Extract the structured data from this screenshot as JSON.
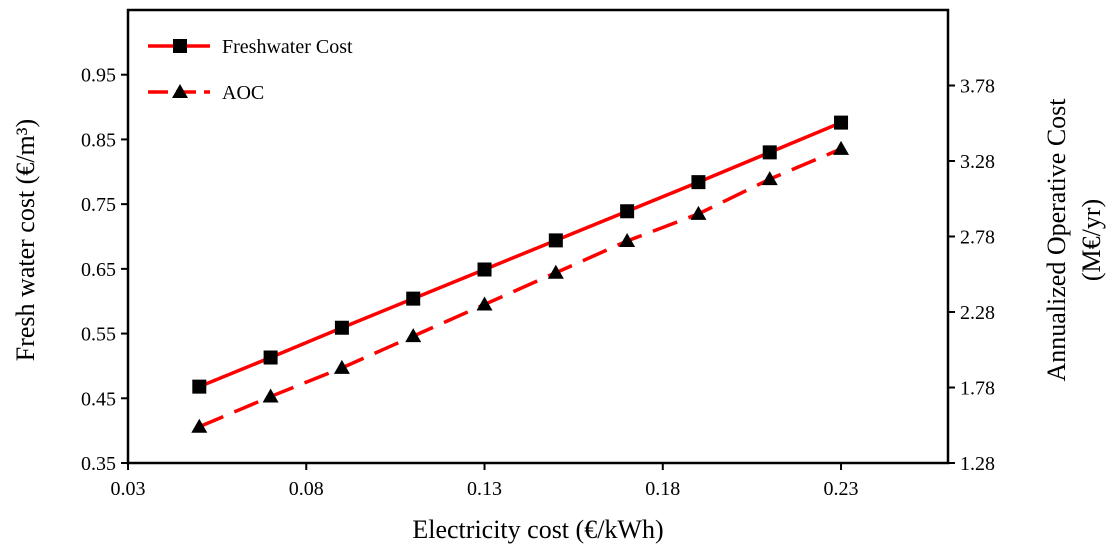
{
  "chart_data": {
    "type": "line",
    "xlabel": "Electricity cost (€/kWh)",
    "ylabel": "Fresh water cost (€/m³)",
    "y2label_lines": [
      "Annualized Operative Cost",
      "(M€/yr)"
    ],
    "xlim": [
      0.03,
      0.26
    ],
    "ylim": [
      0.35,
      1.05
    ],
    "y2lim": [
      1.28,
      4.28
    ],
    "x_ticks": [
      0.03,
      0.08,
      0.13,
      0.18,
      0.23
    ],
    "x_tick_labels": [
      "0.03",
      "0.08",
      "0.13",
      "0.18",
      "0.23"
    ],
    "y_ticks": [
      0.35,
      0.45,
      0.55,
      0.65,
      0.75,
      0.85,
      0.95
    ],
    "y_tick_labels": [
      "0.35",
      "0.45",
      "0.55",
      "0.65",
      "0.75",
      "0.85",
      "0.95"
    ],
    "y2_ticks": [
      1.28,
      1.78,
      2.28,
      2.78,
      3.28,
      3.78
    ],
    "y2_tick_labels": [
      "1.28",
      "1.78",
      "2.28",
      "2.78",
      "3.28",
      "3.78"
    ],
    "grid": false,
    "legend_position": "top-left",
    "x": [
      0.05,
      0.07,
      0.09,
      0.11,
      0.13,
      0.15,
      0.17,
      0.19,
      0.21,
      0.23
    ],
    "series": [
      {
        "name": "Freshwater Cost",
        "axis": "left",
        "marker": "square",
        "line_style": "solid",
        "color": "#ff0000",
        "values": [
          0.468,
          0.513,
          0.559,
          0.604,
          0.649,
          0.694,
          0.739,
          0.784,
          0.83,
          0.876
        ]
      },
      {
        "name": "AOC",
        "axis": "right",
        "marker": "triangle",
        "line_style": "dashed",
        "color": "#ff0000",
        "values": [
          1.52,
          1.72,
          1.91,
          2.12,
          2.33,
          2.54,
          2.75,
          2.93,
          3.16,
          3.36
        ]
      }
    ]
  }
}
